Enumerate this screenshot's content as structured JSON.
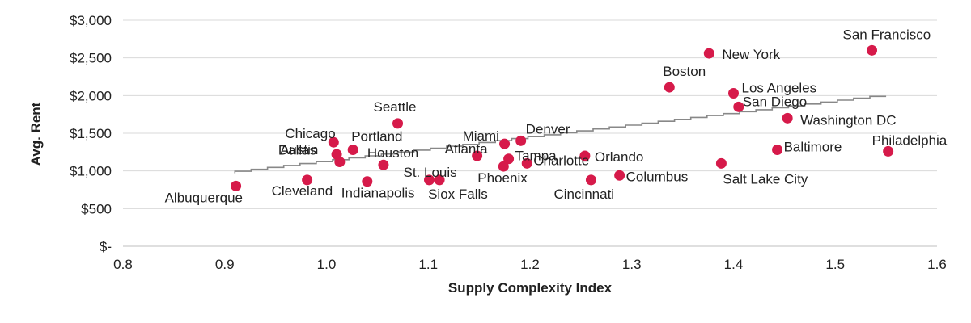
{
  "chart_data": {
    "type": "scatter",
    "title": "",
    "xlabel": "Supply Complexity Index",
    "ylabel": "Avg. Rent",
    "xlim": [
      0.8,
      1.6
    ],
    "ylim": [
      0,
      3000
    ],
    "x_ticks": [
      0.8,
      0.9,
      1.0,
      1.1,
      1.2,
      1.3,
      1.4,
      1.5,
      1.6
    ],
    "x_tick_labels": [
      "0.8",
      "0.9",
      "1.0",
      "1.1",
      "1.2",
      "1.3",
      "1.4",
      "1.5",
      "1.6"
    ],
    "y_ticks": [
      0,
      500,
      1000,
      1500,
      2000,
      2500,
      3000
    ],
    "y_tick_labels": [
      "$-",
      "$500",
      "$1,000",
      "$1,500",
      "$2,000",
      "$2,500",
      "$3,000"
    ],
    "grid": "horizontal",
    "legend": "none",
    "marker_color": "#D61A4A",
    "trendline_color": "#888888",
    "trendline": {
      "type": "linear step",
      "x": [
        0.91,
        1.55
      ],
      "y": [
        970,
        1990
      ]
    },
    "points": [
      {
        "label": "San Francisco",
        "x": 1.536,
        "y": 2600
      },
      {
        "label": "New York",
        "x": 1.376,
        "y": 2560
      },
      {
        "label": "Boston",
        "x": 1.337,
        "y": 2110
      },
      {
        "label": "Los Angeles",
        "x": 1.4,
        "y": 2030
      },
      {
        "label": "San Diego",
        "x": 1.405,
        "y": 1850
      },
      {
        "label": "Washington DC",
        "x": 1.453,
        "y": 1700
      },
      {
        "label": "Seattle",
        "x": 1.07,
        "y": 1630
      },
      {
        "label": "Chicago",
        "x": 1.007,
        "y": 1380
      },
      {
        "label": "Portland",
        "x": 1.026,
        "y": 1280
      },
      {
        "label": "Austin",
        "x": 1.01,
        "y": 1220
      },
      {
        "label": "Dallas",
        "x": 1.013,
        "y": 1120
      },
      {
        "label": "Houston",
        "x": 1.056,
        "y": 1080
      },
      {
        "label": "Miami",
        "x": 1.175,
        "y": 1360
      },
      {
        "label": "Denver",
        "x": 1.191,
        "y": 1400
      },
      {
        "label": "Atlanta",
        "x": 1.148,
        "y": 1200
      },
      {
        "label": "Tampa",
        "x": 1.179,
        "y": 1160
      },
      {
        "label": "Phoenix",
        "x": 1.174,
        "y": 1060
      },
      {
        "label": "Charlotte",
        "x": 1.197,
        "y": 1100
      },
      {
        "label": "Orlando",
        "x": 1.254,
        "y": 1200
      },
      {
        "label": "Baltimore",
        "x": 1.443,
        "y": 1280
      },
      {
        "label": "Philadelphia",
        "x": 1.552,
        "y": 1260
      },
      {
        "label": "Salt Lake City",
        "x": 1.388,
        "y": 1100
      },
      {
        "label": "Columbus",
        "x": 1.288,
        "y": 940
      },
      {
        "label": "Cincinnati",
        "x": 1.26,
        "y": 880
      },
      {
        "label": "St. Louis",
        "x": 1.101,
        "y": 880
      },
      {
        "label": "Siox Falls",
        "x": 1.111,
        "y": 880
      },
      {
        "label": "Cleveland",
        "x": 0.981,
        "y": 880
      },
      {
        "label": "Indianapolis",
        "x": 1.04,
        "y": 860
      },
      {
        "label": "Albuquerque",
        "x": 0.911,
        "y": 800
      }
    ]
  }
}
